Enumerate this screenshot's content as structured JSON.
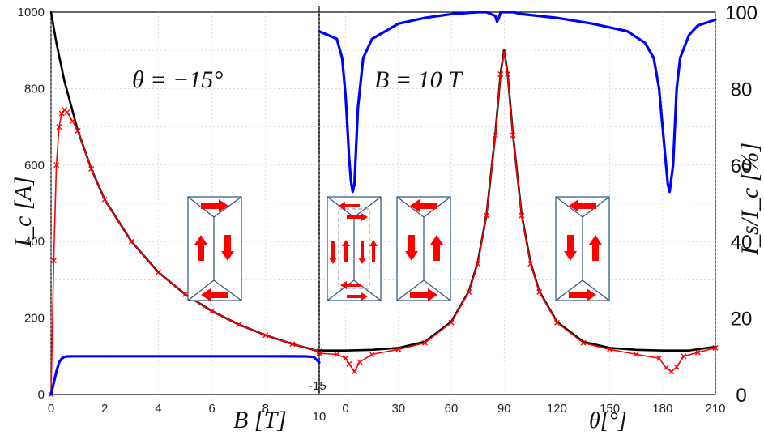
{
  "colors": {
    "ic": "#000000",
    "is_ic": "#ff0000",
    "ratio": "#0000ff",
    "arrow": "#ff0000",
    "box": "#2f4f7f"
  },
  "left_panel": {
    "annotation": "θ = −15°",
    "ylabel": "I_c [A]",
    "xlabel": "B [T]"
  },
  "right_panel": {
    "annotation": "B = 10 T",
    "ylabel": "I_s/I_c [%]",
    "xlabel": "θ[°]",
    "x_start_label": "-15"
  },
  "chart_data": [
    {
      "type": "line",
      "xlabel": "B [T]",
      "ylabel": "I_c [A]",
      "annotation": "θ = −15°",
      "xlim": [
        0,
        10
      ],
      "ylim": [
        0,
        1000
      ],
      "y2lim": [
        0,
        100
      ],
      "x_ticks": [
        "0",
        "2",
        "4",
        "6",
        "8",
        "10"
      ],
      "y_ticks": [
        "0",
        "200",
        "400",
        "600",
        "800",
        "1000"
      ],
      "series": [
        {
          "x": [
            0,
            0.2,
            0.5,
            1,
            1.5,
            2,
            3,
            4,
            5,
            6,
            7,
            8,
            9,
            10
          ],
          "y": [
            1000,
            920,
            820,
            690,
            590,
            510,
            400,
            320,
            262,
            218,
            183,
            155,
            132,
            113
          ]
        },
        {
          "x": [
            0,
            0.1,
            0.2,
            0.3,
            0.4,
            0.5,
            0.6,
            0.8,
            1,
            1.5,
            2,
            3,
            4,
            5,
            6,
            7,
            8,
            9,
            10
          ],
          "y": [
            0,
            350,
            600,
            700,
            735,
            745,
            738,
            715,
            690,
            590,
            510,
            400,
            320,
            262,
            218,
            183,
            155,
            132,
            113
          ]
        },
        {
          "x": [
            0,
            0.1,
            0.2,
            0.3,
            0.4,
            0.5,
            0.6,
            0.8,
            1,
            2,
            4,
            6,
            8,
            9,
            9.5,
            9.8,
            10
          ],
          "y": [
            0,
            30,
            60,
            84,
            94,
            98,
            99.5,
            100,
            100,
            100,
            100,
            100,
            100,
            99.8,
            99.5,
            98,
            84
          ]
        }
      ]
    },
    {
      "type": "line",
      "xlabel": "θ[°]",
      "ylabel": "I_s/I_c [%]",
      "annotation": "B = 10 T",
      "xlim": [
        -15,
        210
      ],
      "ylim": [
        0,
        1000
      ],
      "y2lim": [
        0,
        100
      ],
      "x_ticks": [
        "0",
        "30",
        "60",
        "90",
        "120",
        "150",
        "180",
        "210"
      ],
      "y2_ticks": [
        "0",
        "20",
        "40",
        "60",
        "80",
        "100"
      ],
      "series": [
        {
          "x": [
            -15,
            0,
            15,
            30,
            45,
            60,
            70,
            75,
            80,
            85,
            88,
            90,
            92,
            95,
            100,
            105,
            110,
            120,
            135,
            150,
            165,
            180,
            195,
            210
          ],
          "y": [
            115,
            115,
            117,
            122,
            138,
            190,
            270,
            345,
            470,
            680,
            840,
            900,
            840,
            680,
            470,
            345,
            270,
            190,
            138,
            122,
            117,
            115,
            115,
            125
          ]
        },
        {
          "x": [
            -15,
            -5,
            0,
            2,
            5,
            8,
            15,
            30,
            45,
            60,
            70,
            75,
            80,
            85,
            88,
            90,
            92,
            95,
            100,
            105,
            110,
            120,
            135,
            150,
            165,
            178,
            182,
            185,
            188,
            192,
            200,
            210
          ],
          "y": [
            108,
            105,
            95,
            80,
            60,
            85,
            105,
            118,
            135,
            188,
            268,
            342,
            468,
            678,
            838,
            895,
            838,
            678,
            468,
            342,
            268,
            188,
            135,
            118,
            105,
            95,
            70,
            60,
            72,
            100,
            110,
            122
          ]
        },
        {
          "x": [
            -15,
            -5,
            -2,
            0,
            1,
            2,
            3,
            4,
            5,
            7,
            10,
            15,
            30,
            45,
            60,
            75,
            80,
            85,
            86,
            87,
            88,
            90,
            95,
            100,
            120,
            140,
            160,
            170,
            175,
            178,
            180,
            182,
            183,
            184,
            186,
            188,
            190,
            195,
            200,
            210
          ],
          "y2": [
            95,
            93,
            88,
            78,
            70,
            62,
            56,
            53,
            55,
            75,
            88,
            93,
            97,
            98.5,
            99.5,
            100,
            100,
            99,
            97.5,
            98.5,
            100,
            100,
            100,
            99.5,
            98.5,
            97,
            95,
            92,
            88,
            80,
            70,
            60,
            55,
            53,
            60,
            80,
            88,
            94,
            96.5,
            98
          ]
        }
      ]
    }
  ]
}
